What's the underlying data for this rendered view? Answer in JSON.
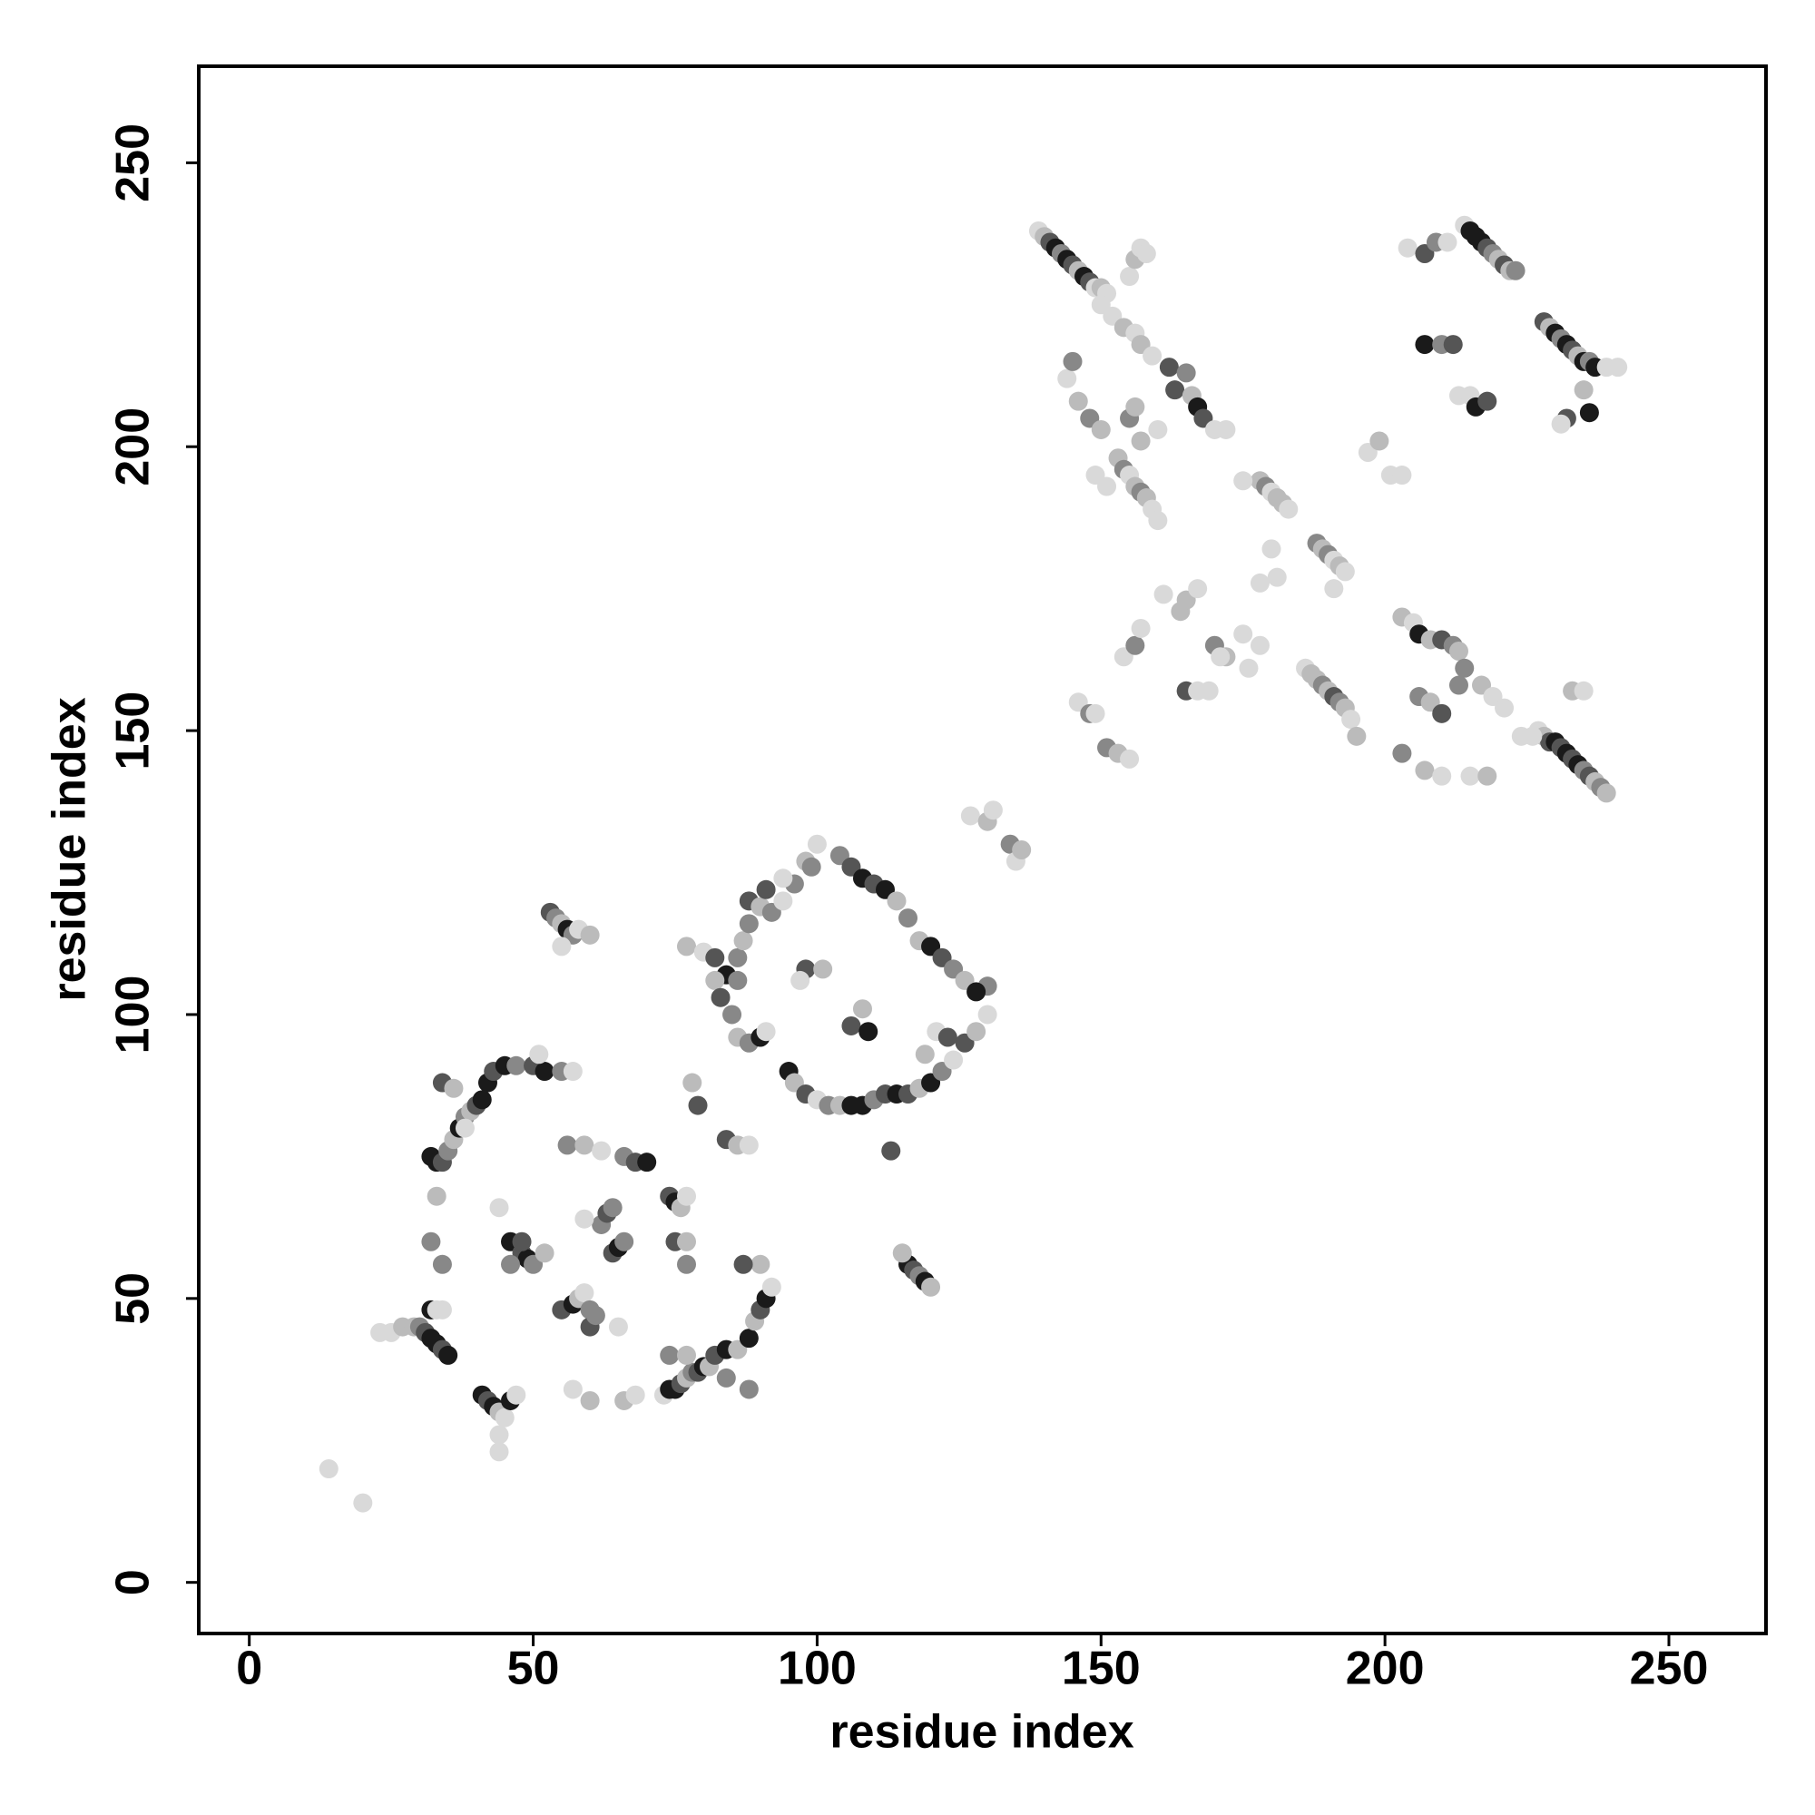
{
  "chart_data": {
    "type": "scatter",
    "xlabel": "residue index",
    "ylabel": "residue index",
    "xlim": [
      -8.9,
      267.1
    ],
    "ylim": [
      -9,
      267
    ],
    "xticks": [
      0,
      50,
      100,
      150,
      200,
      250
    ],
    "yticks": [
      0,
      50,
      100,
      150,
      200,
      250
    ],
    "x": [
      14,
      20,
      23,
      25,
      27,
      29,
      30,
      31,
      32,
      33,
      34,
      35,
      32,
      34,
      32,
      33,
      34,
      35,
      36,
      37,
      38,
      39,
      40,
      41,
      42,
      34,
      36,
      38,
      43,
      45,
      47,
      50,
      52,
      55,
      57,
      51,
      41,
      42,
      43,
      44,
      45,
      44,
      44,
      46,
      47,
      33,
      32,
      34,
      33,
      44,
      46,
      48,
      49,
      50,
      52,
      48,
      46,
      55,
      57,
      58,
      59,
      60,
      60,
      61,
      56,
      59,
      62,
      66,
      68,
      70,
      57,
      60,
      65,
      66,
      68,
      62,
      63,
      64,
      59,
      64,
      65,
      66,
      53,
      54,
      55,
      56,
      57,
      58,
      60,
      55,
      74,
      75,
      76,
      77,
      75,
      77,
      77,
      73,
      74,
      75,
      76,
      77,
      78,
      79,
      80,
      81,
      82,
      84,
      86,
      88,
      89,
      90,
      91,
      92,
      90,
      87,
      84,
      88,
      74,
      77,
      78,
      79,
      84,
      86,
      88,
      77,
      80,
      82,
      84,
      86,
      88,
      90,
      92,
      94,
      96,
      98,
      99,
      100,
      82,
      83,
      85,
      86,
      88,
      90,
      91,
      86,
      87,
      88,
      91,
      94,
      95,
      96,
      98,
      100,
      102,
      104,
      106,
      108,
      110,
      112,
      114,
      116,
      118,
      120,
      122,
      124,
      126,
      128,
      130,
      98,
      97,
      101,
      106,
      109,
      108,
      104,
      106,
      108,
      110,
      112,
      114,
      116,
      118,
      120,
      122,
      124,
      126,
      130,
      128,
      116,
      117,
      118,
      119,
      120,
      115,
      127,
      130,
      131,
      134,
      135,
      136,
      113,
      119,
      121,
      123,
      139,
      140,
      141,
      142,
      143,
      144,
      145,
      146,
      147,
      148,
      149,
      150,
      151,
      150,
      152,
      154,
      156,
      157,
      159,
      155,
      156,
      157,
      158,
      144,
      146,
      148,
      150,
      145,
      153,
      154,
      155,
      156,
      157,
      158,
      159,
      160,
      149,
      151,
      162,
      165,
      163,
      166,
      167,
      168,
      170,
      172,
      155,
      156,
      157,
      160,
      178,
      179,
      180,
      181,
      182,
      175,
      183,
      188,
      189,
      190,
      191,
      192,
      193,
      191,
      186,
      187,
      188,
      189,
      190,
      191,
      192,
      193,
      194,
      195,
      154,
      156,
      157,
      161,
      164,
      165,
      167,
      170,
      172,
      175,
      178,
      176,
      146,
      148,
      149,
      151,
      153,
      155,
      165,
      167,
      169,
      171,
      180,
      178,
      181,
      197,
      199,
      201,
      203,
      204,
      207,
      209,
      211,
      214,
      215,
      216,
      217,
      218,
      219,
      220,
      221,
      222,
      223,
      207,
      210,
      212,
      213,
      215,
      216,
      218,
      228,
      229,
      230,
      231,
      232,
      233,
      234,
      235,
      236,
      237,
      239,
      241,
      232,
      236,
      235,
      231,
      203,
      205,
      206,
      208,
      210,
      212,
      213,
      214,
      206,
      208,
      210,
      213,
      217,
      219,
      221,
      227,
      228,
      229,
      230,
      231,
      232,
      233,
      234,
      235,
      236,
      237,
      238,
      239,
      203,
      207,
      210,
      215,
      218,
      224,
      226,
      233,
      235
    ],
    "values": [
      20,
      14,
      44,
      44,
      45,
      45,
      45,
      44,
      43,
      42,
      41,
      40,
      48,
      48,
      75,
      74,
      74,
      76,
      78,
      80,
      82,
      83,
      84,
      85,
      88,
      88,
      87,
      80,
      90,
      91,
      91,
      91,
      90,
      90,
      90,
      93,
      33,
      32,
      31,
      30,
      29,
      26,
      23,
      32,
      33,
      68,
      60,
      56,
      48,
      66,
      60,
      58,
      57,
      56,
      58,
      60,
      56,
      48,
      49,
      50,
      51,
      48,
      45,
      47,
      77,
      77,
      76,
      75,
      74,
      74,
      34,
      32,
      45,
      32,
      33,
      63,
      65,
      66,
      64,
      58,
      59,
      60,
      118,
      117,
      116,
      115,
      114,
      115,
      114,
      112,
      68,
      67,
      66,
      68,
      60,
      60,
      56,
      33,
      34,
      34,
      35,
      36,
      37,
      37,
      38,
      38,
      40,
      41,
      41,
      43,
      46,
      48,
      50,
      52,
      56,
      56,
      36,
      34,
      40,
      40,
      88,
      84,
      78,
      77,
      77,
      112,
      111,
      110,
      107,
      106,
      120,
      119,
      118,
      120,
      123,
      127,
      126,
      130,
      106,
      103,
      100,
      96,
      95,
      96,
      97,
      110,
      113,
      116,
      122,
      124,
      90,
      88,
      86,
      85,
      84,
      84,
      84,
      84,
      85,
      86,
      86,
      86,
      87,
      88,
      90,
      92,
      95,
      97,
      100,
      108,
      106,
      108,
      98,
      97,
      101,
      128,
      126,
      124,
      123,
      122,
      120,
      117,
      113,
      112,
      110,
      108,
      106,
      105,
      104,
      56,
      55,
      54,
      53,
      52,
      58,
      135,
      134,
      136,
      130,
      127,
      129,
      76,
      93,
      97,
      96,
      238,
      237,
      236,
      235,
      234,
      233,
      232,
      231,
      230,
      229,
      228,
      228,
      227,
      225,
      223,
      221,
      220,
      218,
      216,
      230,
      233,
      235,
      234,
      212,
      208,
      205,
      203,
      215,
      198,
      196,
      195,
      193,
      192,
      191,
      189,
      187,
      195,
      193,
      214,
      213,
      210,
      209,
      207,
      205,
      203,
      203,
      205,
      207,
      201,
      203,
      194,
      193,
      192,
      191,
      190,
      194,
      189,
      183,
      182,
      181,
      180,
      179,
      178,
      175,
      161,
      160,
      159,
      158,
      157,
      156,
      155,
      154,
      152,
      149,
      163,
      165,
      168,
      174,
      171,
      173,
      175,
      165,
      163,
      167,
      165,
      161,
      155,
      153,
      153,
      147,
      146,
      145,
      157,
      157,
      157,
      163,
      182,
      176,
      177,
      199,
      201,
      195,
      195,
      235,
      234,
      236,
      236,
      239,
      238,
      237,
      236,
      235,
      234,
      233,
      232,
      231,
      231,
      218,
      218,
      218,
      209,
      209,
      207,
      208,
      222,
      221,
      220,
      219,
      218,
      217,
      216,
      215,
      215,
      214,
      214,
      214,
      205,
      206,
      210,
      204,
      170,
      169,
      167,
      166,
      166,
      165,
      164,
      161,
      156,
      155,
      153,
      158,
      158,
      156,
      154,
      150,
      149,
      148,
      148,
      147,
      146,
      145,
      144,
      143,
      142,
      141,
      140,
      139,
      146,
      143,
      142,
      142,
      142,
      149,
      149,
      157,
      157
    ],
    "colors": [
      "#d9d9d9",
      "#d9d9d9",
      "#d9d9d9",
      "#d9d9d9",
      "#bbbbbb",
      "#bbbbbb",
      "#888888",
      "#555555",
      "#1a1a1a",
      "#1a1a1a",
      "#555555",
      "#1a1a1a",
      "#1a1a1a",
      "#d9d9d9",
      "#1a1a1a",
      "#1a1a1a",
      "#555555",
      "#888888",
      "#bbbbbb",
      "#1a1a1a",
      "#888888",
      "#bbbbbb",
      "#555555",
      "#1a1a1a",
      "#1a1a1a",
      "#555555",
      "#bbbbbb",
      "#d9d9d9",
      "#555555",
      "#1a1a1a",
      "#888888",
      "#555555",
      "#1a1a1a",
      "#888888",
      "#d9d9d9",
      "#d9d9d9",
      "#1a1a1a",
      "#555555",
      "#1a1a1a",
      "#bbbbbb",
      "#d9d9d9",
      "#d9d9d9",
      "#d9d9d9",
      "#1a1a1a",
      "#d9d9d9",
      "#bbbbbb",
      "#888888",
      "#888888",
      "#d9d9d9",
      "#d9d9d9",
      "#1a1a1a",
      "#555555",
      "#1a1a1a",
      "#888888",
      "#bbbbbb",
      "#555555",
      "#888888",
      "#555555",
      "#1a1a1a",
      "#bbbbbb",
      "#d9d9d9",
      "#888888",
      "#555555",
      "#888888",
      "#888888",
      "#bbbbbb",
      "#d9d9d9",
      "#888888",
      "#555555",
      "#1a1a1a",
      "#d9d9d9",
      "#bbbbbb",
      "#d9d9d9",
      "#bbbbbb",
      "#d9d9d9",
      "#888888",
      "#555555",
      "#888888",
      "#d9d9d9",
      "#555555",
      "#1a1a1a",
      "#888888",
      "#555555",
      "#888888",
      "#bbbbbb",
      "#1a1a1a",
      "#888888",
      "#d9d9d9",
      "#bbbbbb",
      "#d9d9d9",
      "#555555",
      "#1a1a1a",
      "#bbbbbb",
      "#d9d9d9",
      "#555555",
      "#bbbbbb",
      "#888888",
      "#d9d9d9",
      "#1a1a1a",
      "#1a1a1a",
      "#555555",
      "#bbbbbb",
      "#888888",
      "#555555",
      "#1a1a1a",
      "#bbbbbb",
      "#555555",
      "#1a1a1a",
      "#bbbbbb",
      "#1a1a1a",
      "#bbbbbb",
      "#555555",
      "#1a1a1a",
      "#d9d9d9",
      "#bbbbbb",
      "#555555",
      "#888888",
      "#888888",
      "#888888",
      "#bbbbbb",
      "#bbbbbb",
      "#555555",
      "#555555",
      "#bbbbbb",
      "#d9d9d9",
      "#bbbbbb",
      "#d9d9d9",
      "#555555",
      "#1a1a1a",
      "#888888",
      "#555555",
      "#bbbbbb",
      "#888888",
      "#d9d9d9",
      "#888888",
      "#bbbbbb",
      "#888888",
      "#d9d9d9",
      "#bbbbbb",
      "#555555",
      "#888888",
      "#bbbbbb",
      "#888888",
      "#1a1a1a",
      "#d9d9d9",
      "#888888",
      "#bbbbbb",
      "#888888",
      "#555555",
      "#d9d9d9",
      "#1a1a1a",
      "#bbbbbb",
      "#555555",
      "#d9d9d9",
      "#888888",
      "#bbbbbb",
      "#1a1a1a",
      "#1a1a1a",
      "#888888",
      "#555555",
      "#1a1a1a",
      "#555555",
      "#bbbbbb",
      "#1a1a1a",
      "#888888",
      "#d9d9d9",
      "#555555",
      "#bbbbbb",
      "#d9d9d9",
      "#555555",
      "#d9d9d9",
      "#bbbbbb",
      "#555555",
      "#1a1a1a",
      "#bbbbbb",
      "#888888",
      "#555555",
      "#1a1a1a",
      "#555555",
      "#1a1a1a",
      "#bbbbbb",
      "#888888",
      "#bbbbbb",
      "#1a1a1a",
      "#555555",
      "#888888",
      "#bbbbbb",
      "#888888",
      "#1a1a1a",
      "#1a1a1a",
      "#555555",
      "#888888",
      "#1a1a1a",
      "#bbbbbb",
      "#bbbbbb",
      "#d9d9d9",
      "#bbbbbb",
      "#d9d9d9",
      "#888888",
      "#d9d9d9",
      "#bbbbbb",
      "#555555",
      "#bbbbbb",
      "#d9d9d9",
      "#555555",
      "#d9d9d9",
      "#bbbbbb",
      "#555555",
      "#1a1a1a",
      "#888888",
      "#1a1a1a",
      "#555555",
      "#bbbbbb",
      "#1a1a1a",
      "#555555",
      "#d9d9d9",
      "#bbbbbb",
      "#d9d9d9",
      "#d9d9d9",
      "#d9d9d9",
      "#bbbbbb",
      "#d9d9d9",
      "#bbbbbb",
      "#d9d9d9",
      "#d9d9d9",
      "#bbbbbb",
      "#d9d9d9",
      "#d9d9d9",
      "#d9d9d9",
      "#bbbbbb",
      "#888888",
      "#bbbbbb",
      "#888888",
      "#bbbbbb",
      "#888888",
      "#d9d9d9",
      "#bbbbbb",
      "#888888",
      "#bbbbbb",
      "#d9d9d9",
      "#d9d9d9",
      "#d9d9d9",
      "#d9d9d9",
      "#555555",
      "#888888",
      "#555555",
      "#bbbbbb",
      "#1a1a1a",
      "#555555",
      "#d9d9d9",
      "#d9d9d9",
      "#888888",
      "#bbbbbb",
      "#bbbbbb",
      "#d9d9d9",
      "#bbbbbb",
      "#888888",
      "#d9d9d9",
      "#bbbbbb",
      "#bbbbbb",
      "#d9d9d9",
      "#d9d9d9",
      "#888888",
      "#bbbbbb",
      "#888888",
      "#d9d9d9",
      "#bbbbbb",
      "#d9d9d9",
      "#d9d9d9",
      "#d9d9d9",
      "#bbbbbb",
      "#bbbbbb",
      "#888888",
      "#bbbbbb",
      "#555555",
      "#888888",
      "#bbbbbb",
      "#d9d9d9",
      "#bbbbbb",
      "#d9d9d9",
      "#888888",
      "#d9d9d9",
      "#d9d9d9",
      "#bbbbbb",
      "#bbbbbb",
      "#d9d9d9",
      "#888888",
      "#bbbbbb",
      "#d9d9d9",
      "#d9d9d9",
      "#d9d9d9",
      "#d9d9d9",
      "#888888",
      "#d9d9d9",
      "#888888",
      "#bbbbbb",
      "#d9d9d9",
      "#555555",
      "#d9d9d9",
      "#d9d9d9",
      "#d9d9d9",
      "#d9d9d9",
      "#d9d9d9",
      "#d9d9d9",
      "#d9d9d9",
      "#bbbbbb",
      "#d9d9d9",
      "#d9d9d9",
      "#d9d9d9",
      "#555555",
      "#888888",
      "#d9d9d9",
      "#d9d9d9",
      "#1a1a1a",
      "#1a1a1a",
      "#1a1a1a",
      "#555555",
      "#888888",
      "#bbbbbb",
      "#555555",
      "#bbbbbb",
      "#888888",
      "#1a1a1a",
      "#888888",
      "#555555",
      "#d9d9d9",
      "#d9d9d9",
      "#1a1a1a",
      "#555555",
      "#555555",
      "#bbbbbb",
      "#1a1a1a",
      "#888888",
      "#1a1a1a",
      "#555555",
      "#bbbbbb",
      "#1a1a1a",
      "#888888",
      "#1a1a1a",
      "#d9d9d9",
      "#d9d9d9",
      "#555555",
      "#1a1a1a",
      "#bbbbbb",
      "#d9d9d9",
      "#bbbbbb",
      "#d9d9d9",
      "#1a1a1a",
      "#bbbbbb",
      "#555555",
      "#888888",
      "#bbbbbb",
      "#888888",
      "#888888",
      "#bbbbbb",
      "#555555",
      "#888888",
      "#bbbbbb",
      "#d9d9d9",
      "#d9d9d9",
      "#d9d9d9",
      "#bbbbbb",
      "#555555",
      "#1a1a1a",
      "#555555",
      "#1a1a1a",
      "#555555",
      "#1a1a1a",
      "#888888",
      "#555555",
      "#bbbbbb",
      "#888888",
      "#bbbbbb",
      "#888888",
      "#bbbbbb",
      "#d9d9d9",
      "#d9d9d9",
      "#bbbbbb",
      "#d9d9d9",
      "#d9d9d9",
      "#bbbbbb",
      "#d9d9d9"
    ]
  }
}
